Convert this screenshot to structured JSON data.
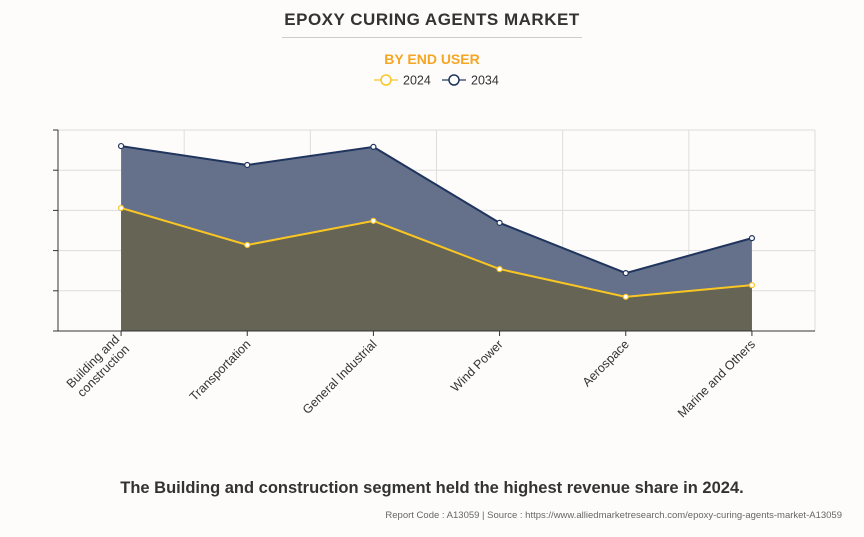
{
  "title": "EPOXY CURING AGENTS MARKET",
  "subtitle": "BY END USER",
  "footer": "The Building and construction segment held the highest revenue share in 2024.",
  "source": "Report Code : A13059  |  Source : https://www.alliedmarketresearch.com/epoxy-curing-agents-market-A13059",
  "chart_data": {
    "type": "area",
    "title": "EPOXY CURING AGENTS MARKET",
    "subtitle": "BY END USER",
    "categories": [
      "Building and construction",
      "Transportation",
      "General Industrial",
      "Wind Power",
      "Aerospace",
      "Marine and Others"
    ],
    "ylim": [
      0,
      5
    ],
    "grid": true,
    "y_tick_labels_shown": false,
    "legend_placement": "top",
    "series": [
      {
        "name": "2024",
        "color": "#f9c623",
        "fill": "#666555",
        "values": [
          3.06,
          2.14,
          2.74,
          1.54,
          0.85,
          1.14
        ]
      },
      {
        "name": "2034",
        "color": "#1f355e",
        "fill": "#65708a",
        "values": [
          4.6,
          4.13,
          4.58,
          2.69,
          1.44,
          2.31
        ]
      }
    ]
  }
}
